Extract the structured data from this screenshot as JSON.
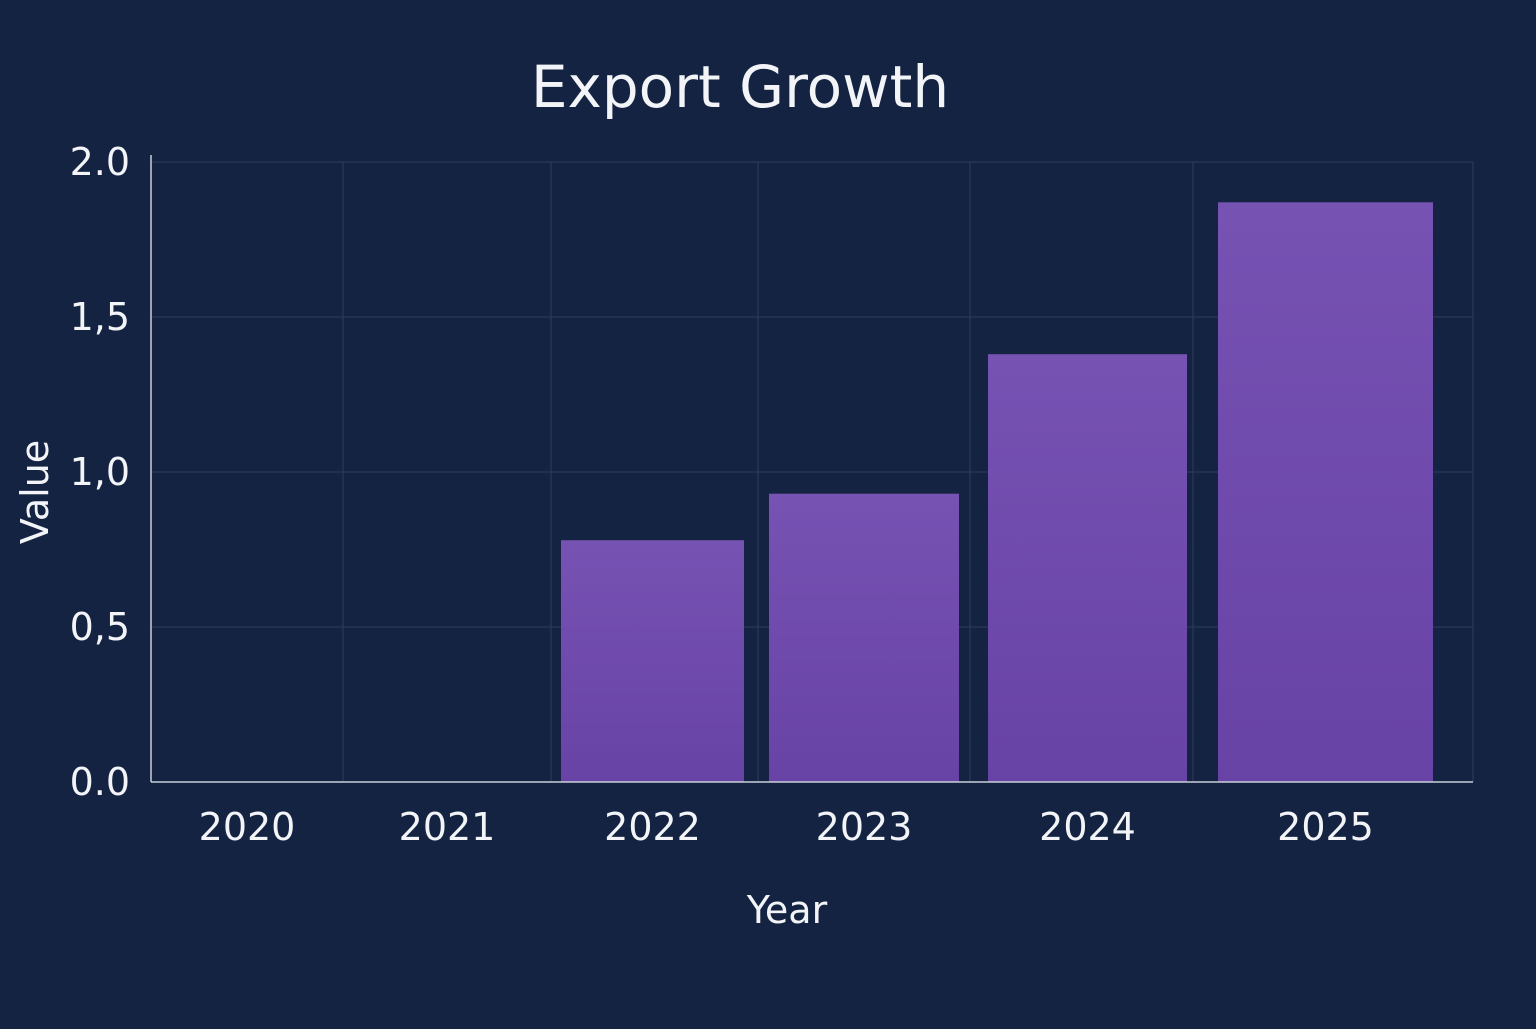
{
  "chart_data": {
    "type": "bar",
    "title": "Export Growth",
    "xlabel": "Year",
    "ylabel": "Value",
    "categories": [
      "2020",
      "2021",
      "2022",
      "2023",
      "2024",
      "2025"
    ],
    "values": [
      0,
      0,
      0.78,
      0.93,
      1.38,
      1.87
    ],
    "ylim": [
      0,
      2.0
    ],
    "yticks": [
      {
        "value": 0.0,
        "label": "0.0"
      },
      {
        "value": 0.5,
        "label": "0,5"
      },
      {
        "value": 1.0,
        "label": "1,0"
      },
      {
        "value": 1.5,
        "label": "1,5"
      },
      {
        "value": 2.0,
        "label": "2.0"
      }
    ],
    "grid": true,
    "legend": "none",
    "colors": {
      "background": "#132341",
      "bar_top": "#7652b3",
      "bar_bottom": "#6843a6",
      "grid": "#2c3d5c",
      "text": "#f2f4f8"
    }
  }
}
